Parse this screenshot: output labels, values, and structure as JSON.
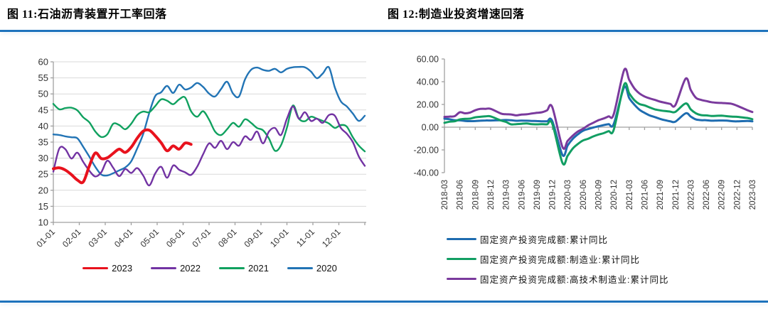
{
  "figures": [
    {
      "title": "图 11:石油沥青装置开工率回落"
    },
    {
      "title": "图 12:制造业投资增速回落"
    }
  ],
  "rule_color": "#1E73BC",
  "chart_data": [
    {
      "type": "line",
      "title": "石油沥青装置开工率回落",
      "x_unit": "weekly",
      "x_interval_days": 7,
      "x_tick_labels": [
        "01-01",
        "02-01",
        "03-01",
        "04-01",
        "05-01",
        "06-01",
        "07-01",
        "08-01",
        "09-01",
        "10-01",
        "11-01",
        "12-01"
      ],
      "ylim": [
        10,
        60
      ],
      "y_tick_labels": [
        "10",
        "15",
        "20",
        "25",
        "30",
        "35",
        "40",
        "45",
        "50",
        "55",
        "60"
      ],
      "grid": true,
      "grid_color": "#D9D9D9",
      "axis_color": "#A0A0A0",
      "legend_position": "bottom-center",
      "series": [
        {
          "name": "2023",
          "color": "#E8121D",
          "width": 4,
          "values": [
            26.7,
            27.0,
            26.3,
            24.9,
            23.2,
            22.6,
            27.5,
            31.6,
            29.9,
            30.1,
            31.5,
            32.8,
            31.8,
            33.4,
            36.2,
            38.4,
            38.7,
            37.0,
            34.8,
            32.3,
            33.8,
            32.8,
            34.7,
            34.3
          ]
        },
        {
          "name": "2022",
          "color": "#7233A3",
          "width": 2.4,
          "values": [
            25.8,
            33.0,
            32.8,
            29.9,
            31.7,
            28.8,
            26.1,
            24.3,
            25.6,
            29.2,
            27.0,
            24.4,
            26.6,
            25.4,
            26.9,
            24.6,
            21.5,
            25.2,
            27.3,
            23.9,
            27.7,
            26.4,
            25.6,
            24.8,
            27.3,
            31.2,
            34.6,
            33.2,
            35.4,
            32.8,
            35.0,
            33.9,
            36.8,
            35.7,
            38.3,
            34.6,
            38.3,
            39.4,
            37.2,
            42.3,
            46.1,
            42.3,
            44.3,
            41.6,
            42.3,
            41.0,
            43.4,
            43.2,
            39.4,
            37.6,
            35.0,
            30.5,
            27.6
          ]
        },
        {
          "name": "2021",
          "color": "#10A15F",
          "width": 2.4,
          "values": [
            46.9,
            45.2,
            45.6,
            45.7,
            44.9,
            42.7,
            41.2,
            38.3,
            36.6,
            37.4,
            40.7,
            40.3,
            39.0,
            40.7,
            43.4,
            44.5,
            44.3,
            46.2,
            48.3,
            47.9,
            46.8,
            48.3,
            48.9,
            44.6,
            42.9,
            44.6,
            42.0,
            38.3,
            37.2,
            39.0,
            41.0,
            39.8,
            42.1,
            41.0,
            39.4,
            38.7,
            36.1,
            32.3,
            34.0,
            39.5,
            46.4,
            42.3,
            41.5,
            42.9,
            42.3,
            41.6,
            40.8,
            39.4,
            40.3,
            39.8,
            36.5,
            33.9,
            32.1
          ]
        },
        {
          "name": "2020",
          "color": "#2274B5",
          "width": 2.4,
          "values": [
            37.4,
            37.2,
            36.8,
            36.5,
            36.2,
            33.5,
            30.5,
            27.3,
            24.9,
            24.6,
            25.3,
            26.2,
            27.1,
            29.0,
            33.0,
            37.5,
            44.0,
            49.3,
            50.5,
            52.5,
            50.3,
            52.9,
            51.4,
            52.0,
            53.4,
            52.2,
            50.1,
            49.2,
            51.5,
            53.8,
            50.1,
            49.2,
            54.5,
            57.5,
            58.2,
            57.5,
            57.2,
            57.8,
            56.7,
            57.8,
            58.3,
            58.4,
            58.3,
            57.0,
            54.9,
            56.4,
            58.3,
            52.0,
            47.7,
            46.1,
            43.9,
            41.6,
            43.2
          ]
        }
      ]
    },
    {
      "type": "line",
      "title": "制造业投资增速回落",
      "x": [
        "2018-03",
        "2018-04",
        "2018-05",
        "2018-06",
        "2018-07",
        "2018-08",
        "2018-09",
        "2018-10",
        "2018-11",
        "2018-12",
        "2019-02",
        "2019-03",
        "2019-04",
        "2019-05",
        "2019-06",
        "2019-07",
        "2019-08",
        "2019-09",
        "2019-10",
        "2019-11",
        "2019-12",
        "2020-02",
        "2020-03",
        "2020-04",
        "2020-05",
        "2020-06",
        "2020-07",
        "2020-08",
        "2020-09",
        "2020-10",
        "2020-11",
        "2020-12",
        "2021-02",
        "2021-03",
        "2021-04",
        "2021-05",
        "2021-06",
        "2021-07",
        "2021-08",
        "2021-09",
        "2021-10",
        "2021-11",
        "2021-12",
        "2022-02",
        "2022-03",
        "2022-04",
        "2022-05",
        "2022-06",
        "2022-07",
        "2022-08",
        "2022-09",
        "2022-10",
        "2022-11",
        "2022-12",
        "2023-02",
        "2023-03"
      ],
      "x_tick_labels": [
        "2018-03",
        "2018-06",
        "2018-09",
        "2018-12",
        "2019-03",
        "2019-06",
        "2019-09",
        "2019-12",
        "2020-03",
        "2020-06",
        "2020-09",
        "2020-12",
        "2021-03",
        "2021-06",
        "2021-09",
        "2021-12",
        "2022-03",
        "2022-06",
        "2022-09",
        "2022-12",
        "2023-03"
      ],
      "ylim": [
        -40,
        60
      ],
      "y_tick_labels": [
        "60.00",
        "40.00",
        "20.00",
        "0.00",
        "-20.00",
        "-40.00"
      ],
      "grid": false,
      "zero_line": true,
      "axis_color": "#A0A0A0",
      "legend_position": "bottom-left",
      "series": [
        {
          "name": "固定资产投资完成额:累计同比",
          "color": "#1E6CB0",
          "width": 3,
          "values": [
            7.5,
            7.0,
            6.1,
            6.0,
            5.5,
            5.3,
            5.4,
            5.7,
            5.9,
            5.9,
            6.1,
            6.3,
            6.1,
            5.6,
            5.8,
            5.7,
            5.5,
            5.4,
            5.2,
            5.2,
            5.4,
            -24.5,
            -16.1,
            -10.3,
            -6.3,
            -3.1,
            -1.6,
            -0.3,
            0.8,
            1.8,
            2.6,
            2.9,
            35.0,
            25.6,
            19.9,
            15.4,
            12.6,
            10.3,
            8.9,
            7.3,
            6.1,
            5.2,
            4.9,
            12.2,
            9.3,
            6.8,
            6.2,
            6.1,
            5.7,
            5.8,
            5.9,
            5.8,
            5.3,
            5.1,
            5.5,
            5.1
          ]
        },
        {
          "name": "固定资产投资完成额:制造业:累计同比",
          "color": "#129E63",
          "width": 3,
          "values": [
            3.8,
            4.8,
            5.2,
            6.8,
            7.3,
            7.5,
            8.7,
            9.1,
            9.5,
            9.5,
            5.9,
            4.6,
            2.5,
            2.7,
            3.0,
            3.3,
            2.6,
            2.5,
            2.6,
            2.5,
            3.1,
            -31.5,
            -25.2,
            -18.8,
            -14.8,
            -11.7,
            -10.2,
            -8.1,
            -6.5,
            -5.3,
            -3.5,
            -2.2,
            37.3,
            29.8,
            23.8,
            20.4,
            19.2,
            17.3,
            15.7,
            14.8,
            14.2,
            13.7,
            13.5,
            20.9,
            15.6,
            12.2,
            10.6,
            10.4,
            9.9,
            10.0,
            10.1,
            9.7,
            9.3,
            9.1,
            8.1,
            7.0
          ]
        },
        {
          "name": "固定资产投资完成额:高技术制造业:累计同比",
          "color": "#7A3A9D",
          "width": 3,
          "values": [
            9.0,
            9.3,
            9.7,
            13.1,
            12.2,
            12.9,
            14.9,
            16.1,
            16.1,
            16.1,
            12.0,
            11.4,
            11.2,
            10.4,
            11.1,
            11.3,
            12.0,
            12.6,
            13.1,
            14.8,
            17.7,
            -17.5,
            -12.1,
            -7.5,
            -3.8,
            -1.4,
            1.6,
            3.9,
            6.1,
            7.6,
            9.5,
            11.5,
            50.1,
            41.6,
            34.2,
            29.7,
            27.0,
            25.3,
            24.0,
            22.5,
            21.5,
            20.5,
            19.5,
            42.7,
            32.7,
            25.9,
            24.0,
            23.0,
            22.0,
            21.5,
            21.3,
            21.0,
            20.5,
            18.9,
            15.0,
            13.3
          ]
        }
      ]
    }
  ]
}
